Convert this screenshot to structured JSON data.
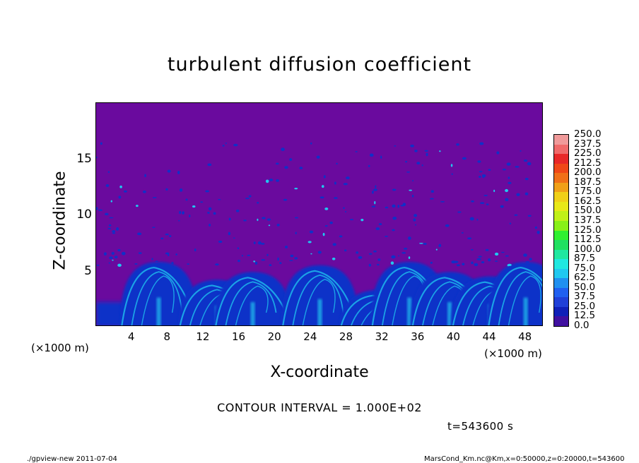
{
  "chart_data": {
    "type": "heatmap",
    "title": "turbulent diffusion coefficient",
    "xlabel": "X-coordinate",
    "ylabel": "Z-coordinate",
    "x_unit_label": "(×1000 m)",
    "x_ticks": [
      "4",
      "8",
      "12",
      "16",
      "20",
      "24",
      "28",
      "32",
      "36",
      "40",
      "44",
      "48"
    ],
    "y_ticks": [
      "5",
      "10",
      "15"
    ],
    "xlim": [
      0,
      50
    ],
    "ylim": [
      0,
      20
    ],
    "background_value": 0.0,
    "plumes": [
      {
        "x_center": 7.0,
        "z_top": 5.8
      },
      {
        "x_center": 13.5,
        "z_top": 4.2
      },
      {
        "x_center": 17.5,
        "z_top": 4.9
      },
      {
        "x_center": 25.0,
        "z_top": 5.5
      },
      {
        "x_center": 31.5,
        "z_top": 3.3
      },
      {
        "x_center": 35.0,
        "z_top": 5.8
      },
      {
        "x_center": 39.5,
        "z_top": 4.9
      },
      {
        "x_center": 44.0,
        "z_top": 4.5
      },
      {
        "x_center": 48.0,
        "z_top": 5.8
      }
    ],
    "colorbar": {
      "labels": [
        "250.0",
        "237.5",
        "225.0",
        "212.5",
        "200.0",
        "187.5",
        "175.0",
        "162.5",
        "150.0",
        "137.5",
        "125.0",
        "112.5",
        "100.0",
        "87.5",
        "75.0",
        "62.5",
        "50.0",
        "37.5",
        "25.0",
        "12.5",
        "0.0"
      ],
      "colors": [
        "#f09a9a",
        "#f06a6a",
        "#e82828",
        "#f04818",
        "#f07018",
        "#f0a018",
        "#f0d018",
        "#e8e818",
        "#c0f018",
        "#88f018",
        "#30f030",
        "#20e060",
        "#20e8a0",
        "#20e8e0",
        "#20c8f0",
        "#2090f0",
        "#2060f0",
        "#2040d8",
        "#1020b8",
        "#4010a0"
      ]
    },
    "contour_interval": "CONTOUR INTERVAL = 1.000E+02",
    "time_label": "t=543600 s"
  },
  "footer": {
    "left": "./gpview-new 2011-07-04",
    "right": "MarsCond_Km.nc@Km,x=0:50000,z=0:20000,t=543600"
  },
  "colors": {
    "background_field": "#6a0a9e",
    "low_field": "#1030c8",
    "mid_field": "#20c8f0"
  }
}
